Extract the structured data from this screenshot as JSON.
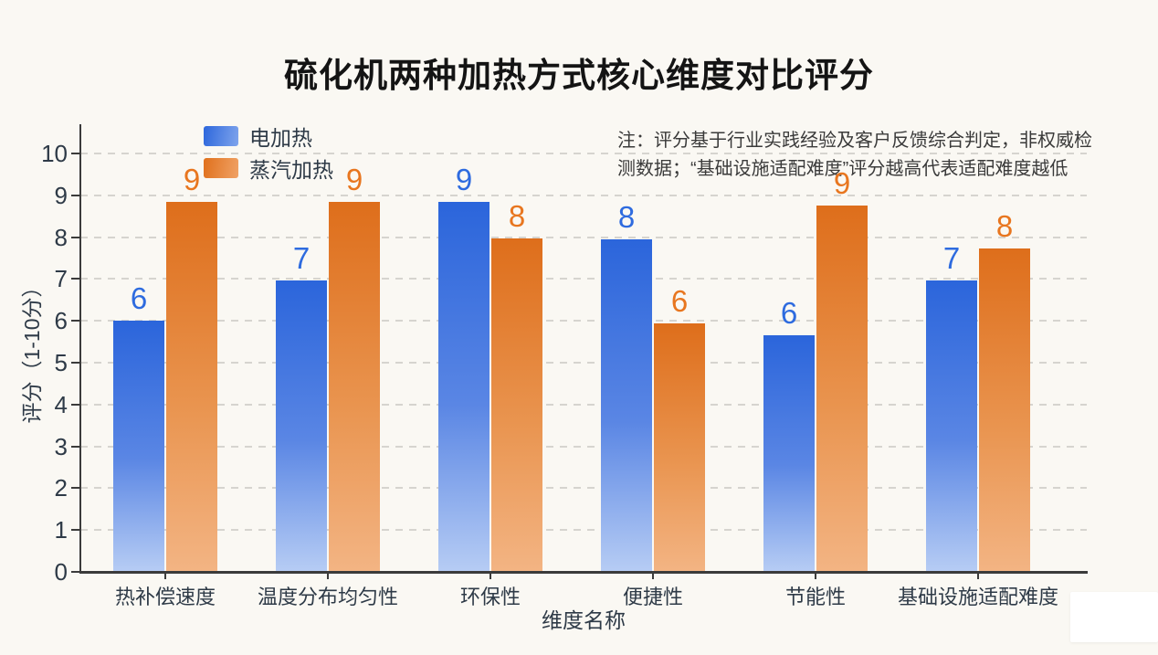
{
  "note": {
    "line1": "注：评分基于行业实践经验及客户反馈综合判定，非权威检",
    "line2": "测数据；“基础设施适配难度”评分越高代表适配难度越低"
  },
  "chart_data": {
    "type": "bar",
    "title": "硫化机两种加热方式核心维度对比评分",
    "categories": [
      "热补偿速度",
      "温度分布均匀性",
      "环保性",
      "便捷性",
      "节能性",
      "基础设施适配难度"
    ],
    "series": [
      {
        "name": "电加热",
        "values": [
          6,
          7,
          9,
          8,
          6,
          7
        ],
        "drawn_values": [
          6.0,
          6.97,
          8.85,
          7.95,
          5.65,
          6.97
        ],
        "color_top": "#2B65DB",
        "color_mid": "#5A86E4",
        "color_bottom": "#B6CCF4",
        "label_color": "#2E6BDF"
      },
      {
        "name": "蒸汽加热",
        "values": [
          9,
          9,
          8,
          6,
          9,
          8
        ],
        "drawn_values": [
          8.85,
          8.85,
          7.97,
          5.93,
          8.75,
          7.72
        ],
        "color_top": "#DE6E1B",
        "color_mid": "#E9944F",
        "color_bottom": "#F3B483",
        "label_color": "#E8761F"
      }
    ],
    "xlabel": "维度名称",
    "ylabel": "评分（1-10分）",
    "ylim": [
      0,
      10
    ],
    "yticks": [
      0,
      1,
      2,
      3,
      4,
      5,
      6,
      7,
      8,
      9,
      10
    ],
    "grid": "horizontal-dashed",
    "legend_position": "upper-left"
  },
  "colors": {
    "background": "#FAF8F3",
    "grid": "#D6D4CF",
    "axis": "#3B3B3B",
    "tick_label": "#2E3A47",
    "note_text": "#3A3A3A",
    "title_text": "#141414"
  }
}
